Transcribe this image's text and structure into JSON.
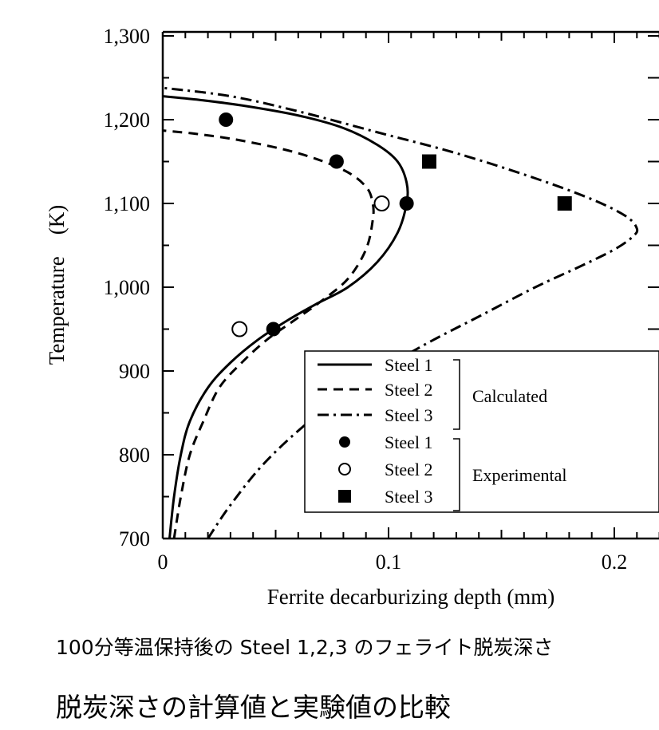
{
  "chart_data": {
    "type": "line",
    "xlabel": "Ferrite decarburizing depth (mm)",
    "ylabel": "Temperature　(K)",
    "xlim": [
      0,
      0.22
    ],
    "ylim": [
      700,
      1300
    ],
    "xticks": [
      0,
      0.1,
      0.2
    ],
    "xtick_labels": [
      "0",
      "0.1",
      "0.2"
    ],
    "yticks": [
      700,
      800,
      900,
      1000,
      1100,
      1200,
      1300
    ],
    "ytick_labels": [
      "700",
      "800",
      "900",
      "1,000",
      "1,100",
      "1,200",
      "1,300"
    ],
    "grid": false,
    "legend_placement": "lower-right",
    "series": [
      {
        "name": "Steel 1",
        "style": "solid",
        "group": "Calculated",
        "x": [
          0.003,
          0.005,
          0.008,
          0.012,
          0.02,
          0.03,
          0.042,
          0.055,
          0.068,
          0.082,
          0.095,
          0.104,
          0.108,
          0.108,
          0.104,
          0.095,
          0.08,
          0.06,
          0.035,
          0.015,
          0.0
        ],
        "y": [
          700,
          750,
          800,
          840,
          880,
          910,
          937,
          960,
          980,
          1000,
          1030,
          1065,
          1100,
          1125,
          1150,
          1170,
          1190,
          1205,
          1217,
          1224,
          1228
        ]
      },
      {
        "name": "Steel 2",
        "style": "dashed",
        "group": "Calculated",
        "x": [
          0.005,
          0.008,
          0.012,
          0.018,
          0.025,
          0.035,
          0.046,
          0.058,
          0.07,
          0.082,
          0.09,
          0.093,
          0.093,
          0.09,
          0.08,
          0.06,
          0.035,
          0.015,
          0.0
        ],
        "y": [
          700,
          750,
          800,
          840,
          880,
          910,
          937,
          960,
          983,
          1010,
          1045,
          1080,
          1100,
          1120,
          1140,
          1160,
          1175,
          1183,
          1187
        ]
      },
      {
        "name": "Steel 3",
        "style": "dash-dot",
        "group": "Calculated",
        "x": [
          0.02,
          0.03,
          0.045,
          0.065,
          0.09,
          0.115,
          0.14,
          0.165,
          0.185,
          0.2,
          0.208,
          0.21,
          0.205,
          0.19,
          0.165,
          0.13,
          0.095,
          0.06,
          0.03,
          0.0
        ],
        "y": [
          700,
          740,
          790,
          840,
          890,
          930,
          965,
          1000,
          1025,
          1045,
          1060,
          1070,
          1085,
          1105,
          1130,
          1160,
          1185,
          1210,
          1228,
          1238
        ]
      },
      {
        "name": "Steel 1",
        "marker": "filled-circle",
        "group": "Experimental",
        "x": [
          0.028,
          0.077,
          0.108,
          0.049
        ],
        "y": [
          1200,
          1150,
          1100,
          950
        ]
      },
      {
        "name": "Steel 2",
        "marker": "open-circle",
        "group": "Experimental",
        "x": [
          0.097,
          0.034
        ],
        "y": [
          1100,
          950
        ]
      },
      {
        "name": "Steel 3",
        "marker": "filled-square",
        "group": "Experimental",
        "x": [
          0.118,
          0.178
        ],
        "y": [
          1150,
          1100
        ]
      }
    ],
    "legend": {
      "entries": [
        {
          "label": "Steel 1",
          "symbol": "solid"
        },
        {
          "label": "Steel 2",
          "symbol": "dashed"
        },
        {
          "label": "Steel 3",
          "symbol": "dash-dot"
        },
        {
          "label": "Steel 1",
          "symbol": "filled-circle"
        },
        {
          "label": "Steel 2",
          "symbol": "open-circle"
        },
        {
          "label": "Steel 3",
          "symbol": "filled-square"
        }
      ],
      "group_labels": [
        "Calculated",
        "Experimental"
      ]
    }
  },
  "captions": {
    "line1": "100分等温保持後の Steel 1,2,3 のフェライト脱炭深さ",
    "line2": "脱炭深さの計算値と実験値の比較"
  }
}
